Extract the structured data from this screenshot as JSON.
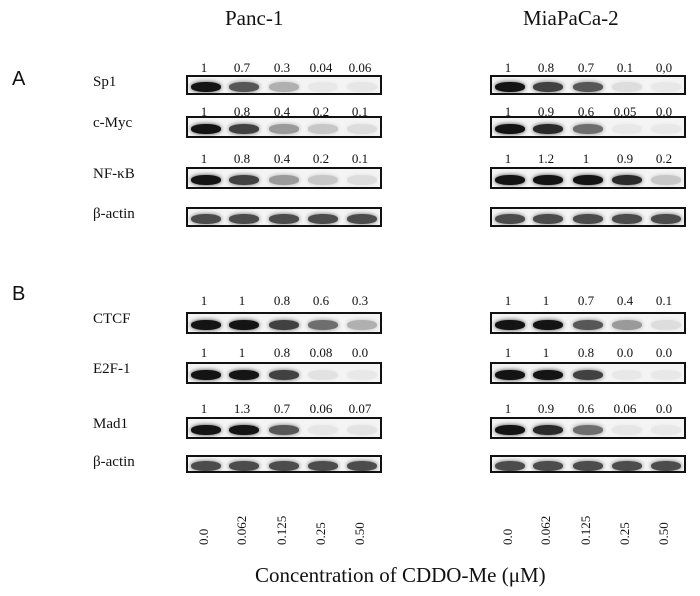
{
  "columns": [
    "Panc-1",
    "MiaPaCa-2"
  ],
  "panels": [
    "A",
    "B"
  ],
  "blots": [
    {
      "protein": "Sp1",
      "values": [
        [
          "1",
          "0.7",
          "0.3",
          "0.04",
          "0.06"
        ],
        [
          "1",
          "0.8",
          "0.7",
          "0.1",
          "0,0"
        ]
      ]
    },
    {
      "protein": "c-Myc",
      "values": [
        [
          "1",
          "0.8",
          "0.4",
          "0.2",
          "0.1"
        ],
        [
          "1",
          "0.9",
          "0.6",
          "0.05",
          "0.0"
        ]
      ]
    },
    {
      "protein": "NF-κB",
      "values": [
        [
          "1",
          "0.8",
          "0.4",
          "0.2",
          "0.1"
        ],
        [
          "1",
          "1.2",
          "1",
          "0.9",
          "0.2"
        ]
      ]
    },
    {
      "protein": "β-actin",
      "values": null
    },
    {
      "protein": "CTCF",
      "values": [
        [
          "1",
          "1",
          "0.8",
          "0.6",
          "0.3"
        ],
        [
          "1",
          "1",
          "0.7",
          "0.4",
          "0.1"
        ]
      ]
    },
    {
      "protein": "E2F-1",
      "values": [
        [
          "1",
          "1",
          "0.8",
          "0.08",
          "0.0"
        ],
        [
          "1",
          "1",
          "0.8",
          "0.0",
          "0.0"
        ]
      ]
    },
    {
      "protein": "Mad1",
      "values": [
        [
          "1",
          "1.3",
          "0.7",
          "0.06",
          "0.07"
        ],
        [
          "1",
          "0.9",
          "0.6",
          "0.06",
          "0.0"
        ]
      ]
    },
    {
      "protein": "β-actin",
      "values": null
    }
  ],
  "concentrations": [
    "0.0",
    "0.062",
    "0.125",
    "0.25",
    "0.50"
  ],
  "xlabel": "Concentration of CDDO-Me (μM)"
}
